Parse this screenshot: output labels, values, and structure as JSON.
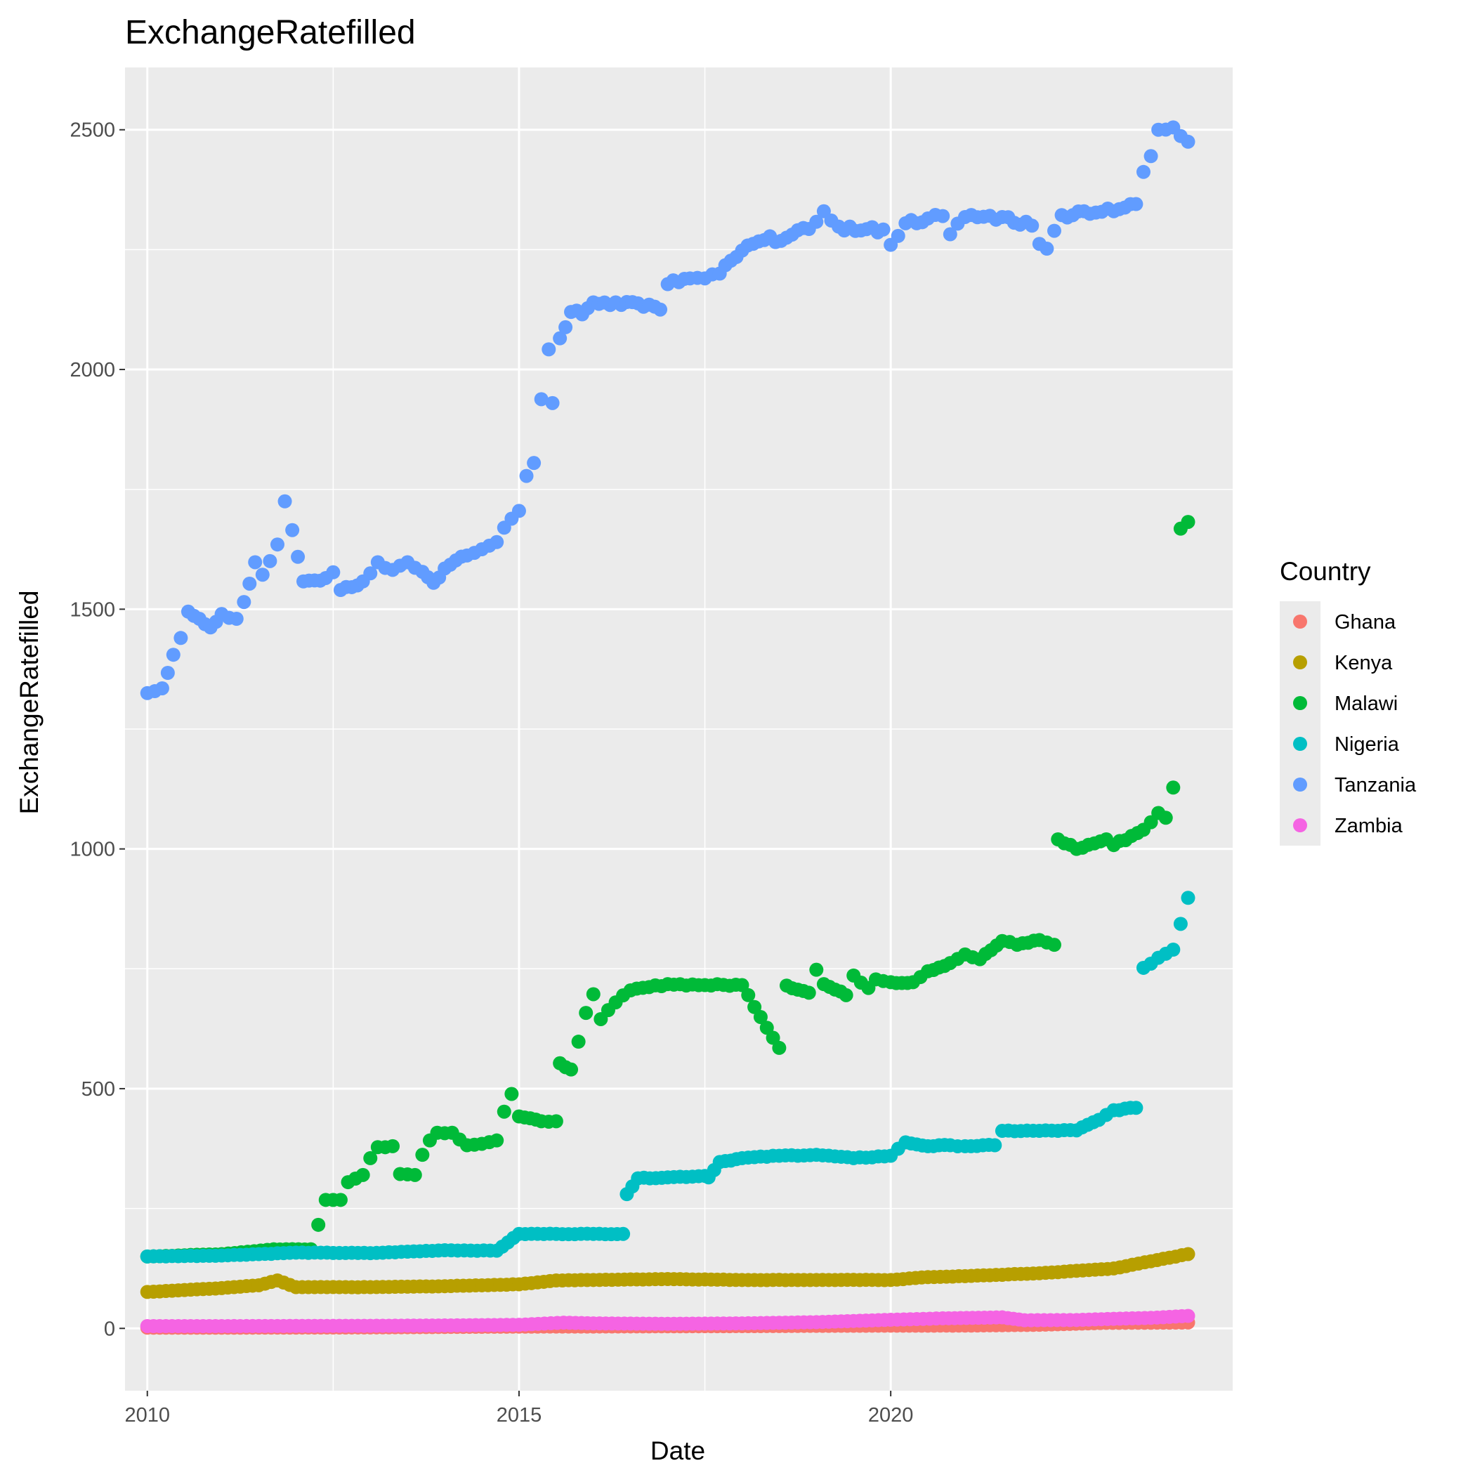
{
  "chart_data": {
    "type": "scatter",
    "title": "ExchangeRatefilled",
    "xlabel": "Date",
    "ylabel": "ExchangeRatefilled",
    "xlim": [
      2009.7,
      2024.6
    ],
    "ylim": [
      -130,
      2630
    ],
    "x_ticks": [
      2010,
      2015,
      2020
    ],
    "y_ticks": [
      0,
      500,
      1000,
      1500,
      2000,
      2500
    ],
    "grid": true,
    "legend": {
      "title": "Country",
      "placement": "right"
    },
    "series": [
      {
        "name": "Ghana",
        "color": "#F8766D",
        "points": [
          [
            2010.0,
            1.4
          ],
          [
            2011.0,
            1.5
          ],
          [
            2012.0,
            1.7
          ],
          [
            2013.0,
            2.0
          ],
          [
            2014.0,
            3.0
          ],
          [
            2015.0,
            3.7
          ],
          [
            2016.0,
            3.9
          ],
          [
            2017.0,
            4.4
          ],
          [
            2018.0,
            4.7
          ],
          [
            2019.0,
            5.3
          ],
          [
            2020.0,
            5.7
          ],
          [
            2021.0,
            5.8
          ],
          [
            2022.0,
            7.5
          ],
          [
            2022.9,
            11.5
          ],
          [
            2023.5,
            11.8
          ],
          [
            2024.0,
            12.2
          ]
        ]
      },
      {
        "name": "Kenya",
        "color": "#B79F00",
        "points": [
          [
            2010.0,
            76
          ],
          [
            2010.5,
            80
          ],
          [
            2011.0,
            84
          ],
          [
            2011.5,
            90
          ],
          [
            2011.75,
            100
          ],
          [
            2012.0,
            86
          ],
          [
            2013.0,
            86
          ],
          [
            2014.0,
            88
          ],
          [
            2015.0,
            92
          ],
          [
            2015.5,
            100
          ],
          [
            2016.0,
            101
          ],
          [
            2017.0,
            103
          ],
          [
            2018.0,
            101
          ],
          [
            2019.0,
            101
          ],
          [
            2020.0,
            101
          ],
          [
            2020.5,
            107
          ],
          [
            2021.0,
            109
          ],
          [
            2022.0,
            115
          ],
          [
            2023.0,
            125
          ],
          [
            2023.5,
            140
          ],
          [
            2024.0,
            155
          ]
        ]
      },
      {
        "name": "Malawi",
        "color": "#00BA38",
        "points": [
          [
            2010.0,
            150
          ],
          [
            2011.0,
            155
          ],
          [
            2011.7,
            165
          ],
          [
            2012.2,
            165
          ],
          [
            2012.4,
            268
          ],
          [
            2012.6,
            268
          ],
          [
            2012.7,
            305
          ],
          [
            2012.9,
            320
          ],
          [
            2013.0,
            355
          ],
          [
            2013.1,
            378
          ],
          [
            2013.3,
            380
          ],
          [
            2013.4,
            322
          ],
          [
            2013.6,
            320
          ],
          [
            2013.7,
            362
          ],
          [
            2013.8,
            392
          ],
          [
            2013.9,
            408
          ],
          [
            2014.1,
            408
          ],
          [
            2014.3,
            382
          ],
          [
            2014.5,
            385
          ],
          [
            2014.7,
            392
          ],
          [
            2014.8,
            452
          ],
          [
            2014.9,
            489
          ],
          [
            2015.0,
            442
          ],
          [
            2015.3,
            432
          ],
          [
            2015.5,
            432
          ],
          [
            2015.55,
            553
          ],
          [
            2015.7,
            540
          ],
          [
            2015.8,
            598
          ],
          [
            2015.9,
            658
          ],
          [
            2016.0,
            697
          ],
          [
            2016.1,
            645
          ],
          [
            2016.3,
            680
          ],
          [
            2016.5,
            705
          ],
          [
            2017.0,
            718
          ],
          [
            2017.5,
            716
          ],
          [
            2018.0,
            716
          ],
          [
            2018.5,
            585
          ],
          [
            2018.6,
            715
          ],
          [
            2018.9,
            700
          ],
          [
            2019.0,
            748
          ],
          [
            2019.1,
            718
          ],
          [
            2019.4,
            695
          ],
          [
            2019.5,
            736
          ],
          [
            2019.7,
            710
          ],
          [
            2019.8,
            728
          ],
          [
            2020.0,
            722
          ],
          [
            2020.3,
            722
          ],
          [
            2020.5,
            745
          ],
          [
            2020.8,
            762
          ],
          [
            2021.0,
            780
          ],
          [
            2021.2,
            770
          ],
          [
            2021.5,
            808
          ],
          [
            2021.7,
            800
          ],
          [
            2022.0,
            810
          ],
          [
            2022.2,
            800
          ],
          [
            2022.25,
            1020
          ],
          [
            2022.5,
            1000
          ],
          [
            2022.9,
            1020
          ],
          [
            2023.0,
            1008
          ],
          [
            2023.4,
            1040
          ],
          [
            2023.6,
            1075
          ],
          [
            2023.7,
            1065
          ],
          [
            2023.8,
            1128
          ],
          [
            2023.9,
            1668
          ],
          [
            2024.0,
            1682
          ]
        ]
      },
      {
        "name": "Nigeria",
        "color": "#00BFC4",
        "points": [
          [
            2010.0,
            150
          ],
          [
            2011.0,
            152
          ],
          [
            2012.0,
            158
          ],
          [
            2013.0,
            157
          ],
          [
            2014.0,
            163
          ],
          [
            2014.7,
            162
          ],
          [
            2015.0,
            197
          ],
          [
            2015.5,
            197
          ],
          [
            2016.0,
            197
          ],
          [
            2016.4,
            197
          ],
          [
            2016.45,
            280
          ],
          [
            2016.6,
            313
          ],
          [
            2017.0,
            315
          ],
          [
            2017.5,
            318
          ],
          [
            2017.55,
            315
          ],
          [
            2017.7,
            347
          ],
          [
            2018.0,
            355
          ],
          [
            2018.5,
            360
          ],
          [
            2019.0,
            362
          ],
          [
            2019.5,
            355
          ],
          [
            2020.0,
            360
          ],
          [
            2020.2,
            388
          ],
          [
            2020.5,
            380
          ],
          [
            2020.8,
            382
          ],
          [
            2021.0,
            380
          ],
          [
            2021.4,
            382
          ],
          [
            2021.5,
            412
          ],
          [
            2022.0,
            412
          ],
          [
            2022.5,
            413
          ],
          [
            2022.8,
            435
          ],
          [
            2023.0,
            455
          ],
          [
            2023.3,
            460
          ],
          [
            2023.4,
            752
          ],
          [
            2023.6,
            773
          ],
          [
            2023.8,
            790
          ],
          [
            2024.0,
            898
          ]
        ]
      },
      {
        "name": "Tanzania",
        "color": "#619CFF",
        "points": [
          [
            2010.0,
            1325
          ],
          [
            2010.2,
            1335
          ],
          [
            2010.35,
            1405
          ],
          [
            2010.45,
            1440
          ],
          [
            2010.55,
            1495
          ],
          [
            2010.7,
            1480
          ],
          [
            2010.85,
            1462
          ],
          [
            2011.0,
            1490
          ],
          [
            2011.2,
            1480
          ],
          [
            2011.3,
            1515
          ],
          [
            2011.45,
            1598
          ],
          [
            2011.55,
            1572
          ],
          [
            2011.75,
            1635
          ],
          [
            2011.85,
            1725
          ],
          [
            2011.95,
            1665
          ],
          [
            2012.1,
            1558
          ],
          [
            2012.4,
            1565
          ],
          [
            2012.5,
            1577
          ],
          [
            2012.6,
            1540
          ],
          [
            2012.9,
            1558
          ],
          [
            2013.1,
            1598
          ],
          [
            2013.3,
            1582
          ],
          [
            2013.5,
            1598
          ],
          [
            2013.7,
            1578
          ],
          [
            2013.85,
            1555
          ],
          [
            2014.0,
            1585
          ],
          [
            2014.3,
            1612
          ],
          [
            2014.5,
            1625
          ],
          [
            2014.7,
            1640
          ],
          [
            2014.8,
            1670
          ],
          [
            2015.0,
            1705
          ],
          [
            2015.1,
            1778
          ],
          [
            2015.2,
            1805
          ],
          [
            2015.3,
            1938
          ],
          [
            2015.4,
            2042
          ],
          [
            2015.45,
            1930
          ],
          [
            2015.55,
            2065
          ],
          [
            2015.7,
            2120
          ],
          [
            2015.85,
            2115
          ],
          [
            2016.0,
            2140
          ],
          [
            2016.3,
            2140
          ],
          [
            2016.6,
            2138
          ],
          [
            2016.9,
            2125
          ],
          [
            2017.0,
            2178
          ],
          [
            2017.3,
            2190
          ],
          [
            2017.5,
            2190
          ],
          [
            2017.7,
            2200
          ],
          [
            2018.0,
            2248
          ],
          [
            2018.3,
            2270
          ],
          [
            2018.6,
            2275
          ],
          [
            2018.9,
            2293
          ],
          [
            2019.0,
            2308
          ],
          [
            2019.1,
            2330
          ],
          [
            2019.3,
            2298
          ],
          [
            2019.6,
            2290
          ],
          [
            2019.9,
            2292
          ],
          [
            2020.0,
            2260
          ],
          [
            2020.2,
            2305
          ],
          [
            2020.5,
            2315
          ],
          [
            2020.7,
            2320
          ],
          [
            2020.8,
            2282
          ],
          [
            2021.0,
            2318
          ],
          [
            2021.5,
            2318
          ],
          [
            2021.9,
            2300
          ],
          [
            2022.0,
            2262
          ],
          [
            2022.1,
            2252
          ],
          [
            2022.3,
            2322
          ],
          [
            2022.6,
            2330
          ],
          [
            2023.0,
            2330
          ],
          [
            2023.3,
            2345
          ],
          [
            2023.4,
            2412
          ],
          [
            2023.5,
            2445
          ],
          [
            2023.6,
            2500
          ],
          [
            2023.8,
            2505
          ],
          [
            2024.0,
            2475
          ]
        ]
      },
      {
        "name": "Zambia",
        "color": "#F564E3",
        "points": [
          [
            2010.0,
            4.8
          ],
          [
            2011.0,
            4.8
          ],
          [
            2012.0,
            5.1
          ],
          [
            2013.0,
            5.4
          ],
          [
            2014.0,
            6.2
          ],
          [
            2015.0,
            7.5
          ],
          [
            2015.6,
            12.0
          ],
          [
            2016.0,
            10.5
          ],
          [
            2017.0,
            9.5
          ],
          [
            2018.0,
            10.5
          ],
          [
            2019.0,
            13.0
          ],
          [
            2020.0,
            18.0
          ],
          [
            2020.7,
            21.0
          ],
          [
            2021.5,
            23.0
          ],
          [
            2021.8,
            17.0
          ],
          [
            2022.5,
            17.5
          ],
          [
            2023.0,
            20.0
          ],
          [
            2023.5,
            22.0
          ],
          [
            2024.0,
            26.0
          ]
        ]
      }
    ]
  }
}
